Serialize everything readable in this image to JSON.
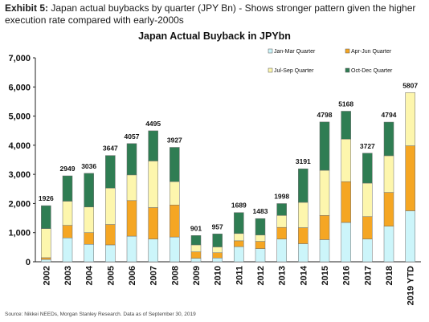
{
  "exhibit": {
    "label": "Exhibit 5:",
    "text": "Japan actual buybacks by quarter (JPY Bn) - Shows stronger pattern given the higher execution rate compared with early-2000s"
  },
  "source": "Source: Nikkei NEEDs, Morgan Stanley Research. Data as of September 30, 2019",
  "chart_data": {
    "type": "bar",
    "stacked": true,
    "title": "Japan Actual Buyback in JPYbn",
    "xlabel": "",
    "ylabel": "",
    "ylim": [
      0,
      7000
    ],
    "yticks": [
      0,
      1000,
      2000,
      3000,
      4000,
      5000,
      6000,
      7000
    ],
    "ytick_labels": [
      "0",
      "1,000",
      "2,000",
      "3,000",
      "4,000",
      "5,000",
      "6,000",
      "7,000"
    ],
    "grid": false,
    "legend_position": "top-right",
    "categories": [
      "2002",
      "2003",
      "2004",
      "2005",
      "2006",
      "2007",
      "2008",
      "2009",
      "2010",
      "2011",
      "2012",
      "2013",
      "2014",
      "2015",
      "2016",
      "2017",
      "2018",
      "2019 YTD"
    ],
    "totals": [
      1926,
      2949,
      3036,
      3647,
      4057,
      4495,
      3927,
      901,
      957,
      1689,
      1483,
      1998,
      3191,
      4798,
      5168,
      3727,
      4794,
      5807
    ],
    "total_labels": [
      "1926",
      "2949",
      "3036",
      "3647",
      "4057",
      "4495",
      "3927",
      "901",
      "957",
      "1689",
      "1483",
      "1998",
      "3191",
      "4798",
      "5168",
      "3727",
      "4794",
      "5807"
    ],
    "series": [
      {
        "name": "Jan-Mar Quarter",
        "color": "#ccf5fa",
        "values": [
          80,
          820,
          600,
          580,
          880,
          780,
          850,
          120,
          130,
          520,
          450,
          780,
          620,
          760,
          1350,
          780,
          1220,
          1750
        ]
      },
      {
        "name": "Apr-Jun Quarter",
        "color": "#f5a623",
        "values": [
          60,
          430,
          400,
          700,
          1220,
          1080,
          1100,
          220,
          180,
          200,
          250,
          400,
          550,
          830,
          1400,
          770,
          1160,
          2230
        ]
      },
      {
        "name": "Jul-Sep Quarter",
        "color": "#fdf6ad",
        "values": [
          1000,
          830,
          880,
          1250,
          880,
          1600,
          800,
          240,
          200,
          250,
          220,
          410,
          870,
          1550,
          1460,
          1150,
          1260,
          1827
        ]
      },
      {
        "name": "Oct-Dec Quarter",
        "color": "#2f7d53",
        "values": [
          786,
          869,
          1156,
          1117,
          1077,
          1035,
          1177,
          321,
          447,
          719,
          563,
          408,
          1151,
          1658,
          958,
          1027,
          1154,
          0
        ]
      }
    ]
  }
}
